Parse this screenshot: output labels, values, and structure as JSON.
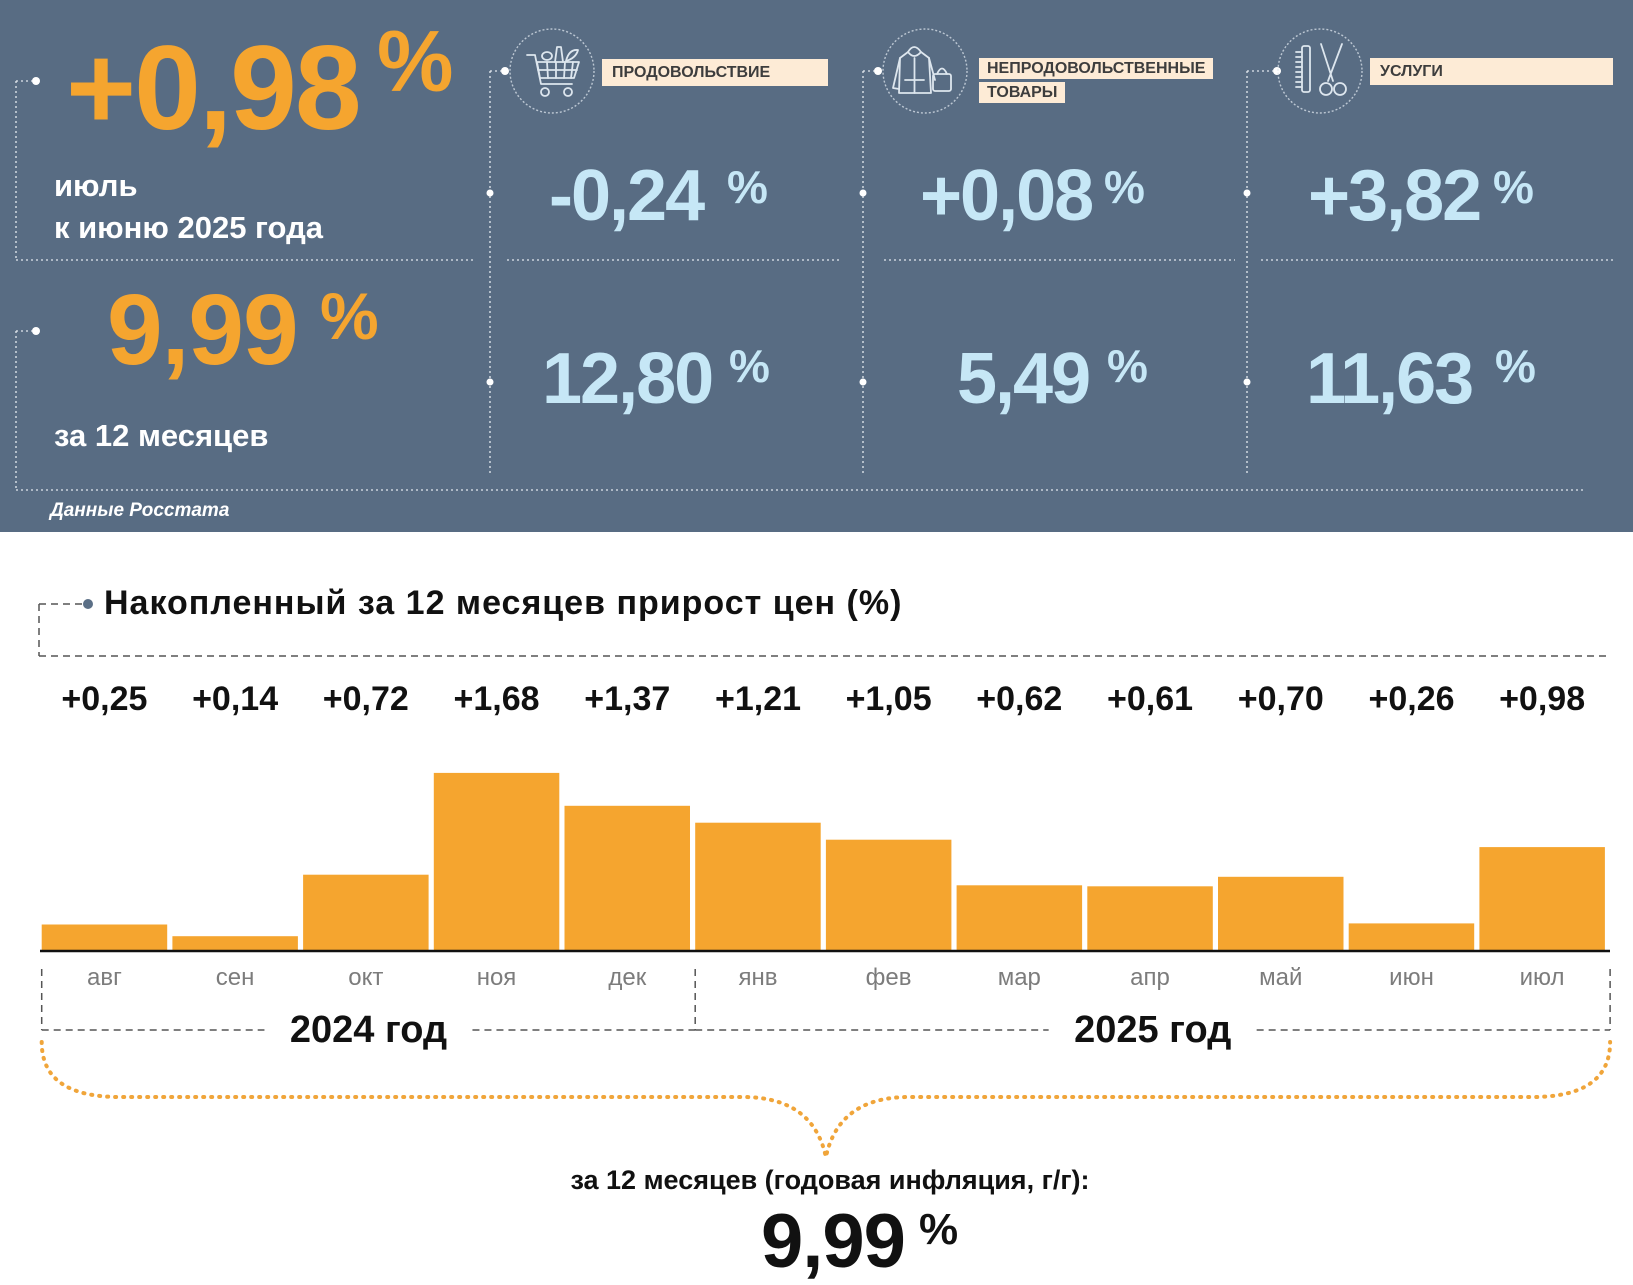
{
  "colors": {
    "panel": "#586c83",
    "accent": "#f5a52f",
    "value_blue": "#c6e7f6",
    "tag_bg": "#fdebd6",
    "text_dark": "#111111"
  },
  "headline": {
    "month": {
      "value": "+0,98",
      "unit": "%",
      "line1": "июль",
      "line2": "к июню 2025 года"
    },
    "annual": {
      "value": "9,99",
      "unit": "%",
      "label": "за 12 месяцев"
    }
  },
  "categories": [
    {
      "name": "ПРОДОВОЛЬСТВИЕ",
      "icon": "shopping-cart-icon",
      "month_change": "-0,24",
      "annual_change": "12,80",
      "unit": "%"
    },
    {
      "name": "НЕПРОДОВОЛЬСТВЕННЫЕ ТОВАРЫ",
      "icon": "clothing-and-bag-icon",
      "month_change": "+0,08",
      "annual_change": "5,49",
      "unit": "%"
    },
    {
      "name": "УСЛУГИ",
      "icon": "comb-and-scissors-icon",
      "month_change": "+3,82",
      "annual_change": "11,63",
      "unit": "%"
    }
  ],
  "source": "Данные Росстата",
  "chart_data": {
    "type": "bar",
    "title": "Накопленный за 12 месяцев прирост цен (%)",
    "categories": [
      "авг",
      "сен",
      "окт",
      "ноя",
      "дек",
      "янв",
      "фев",
      "мар",
      "апр",
      "май",
      "июн",
      "июл"
    ],
    "values": [
      0.25,
      0.14,
      0.72,
      1.68,
      1.37,
      1.21,
      1.05,
      0.62,
      0.61,
      0.7,
      0.26,
      0.98
    ],
    "value_labels": [
      "+0,25",
      "+0,14",
      "+0,72",
      "+1,68",
      "+1,37",
      "+1,21",
      "+1,05",
      "+0,62",
      "+0,61",
      "+0,70",
      "+0,26",
      "+0,98"
    ],
    "groups": [
      {
        "label": "2024 год",
        "start": 0,
        "end": 4
      },
      {
        "label": "2025 год",
        "start": 5,
        "end": 11
      }
    ],
    "color": "#f5a52f",
    "grid": false,
    "legend": "none"
  },
  "summary": {
    "caption": "за 12 месяцев (годовая инфляция, г/г):",
    "value": "9,99",
    "unit": "%"
  }
}
